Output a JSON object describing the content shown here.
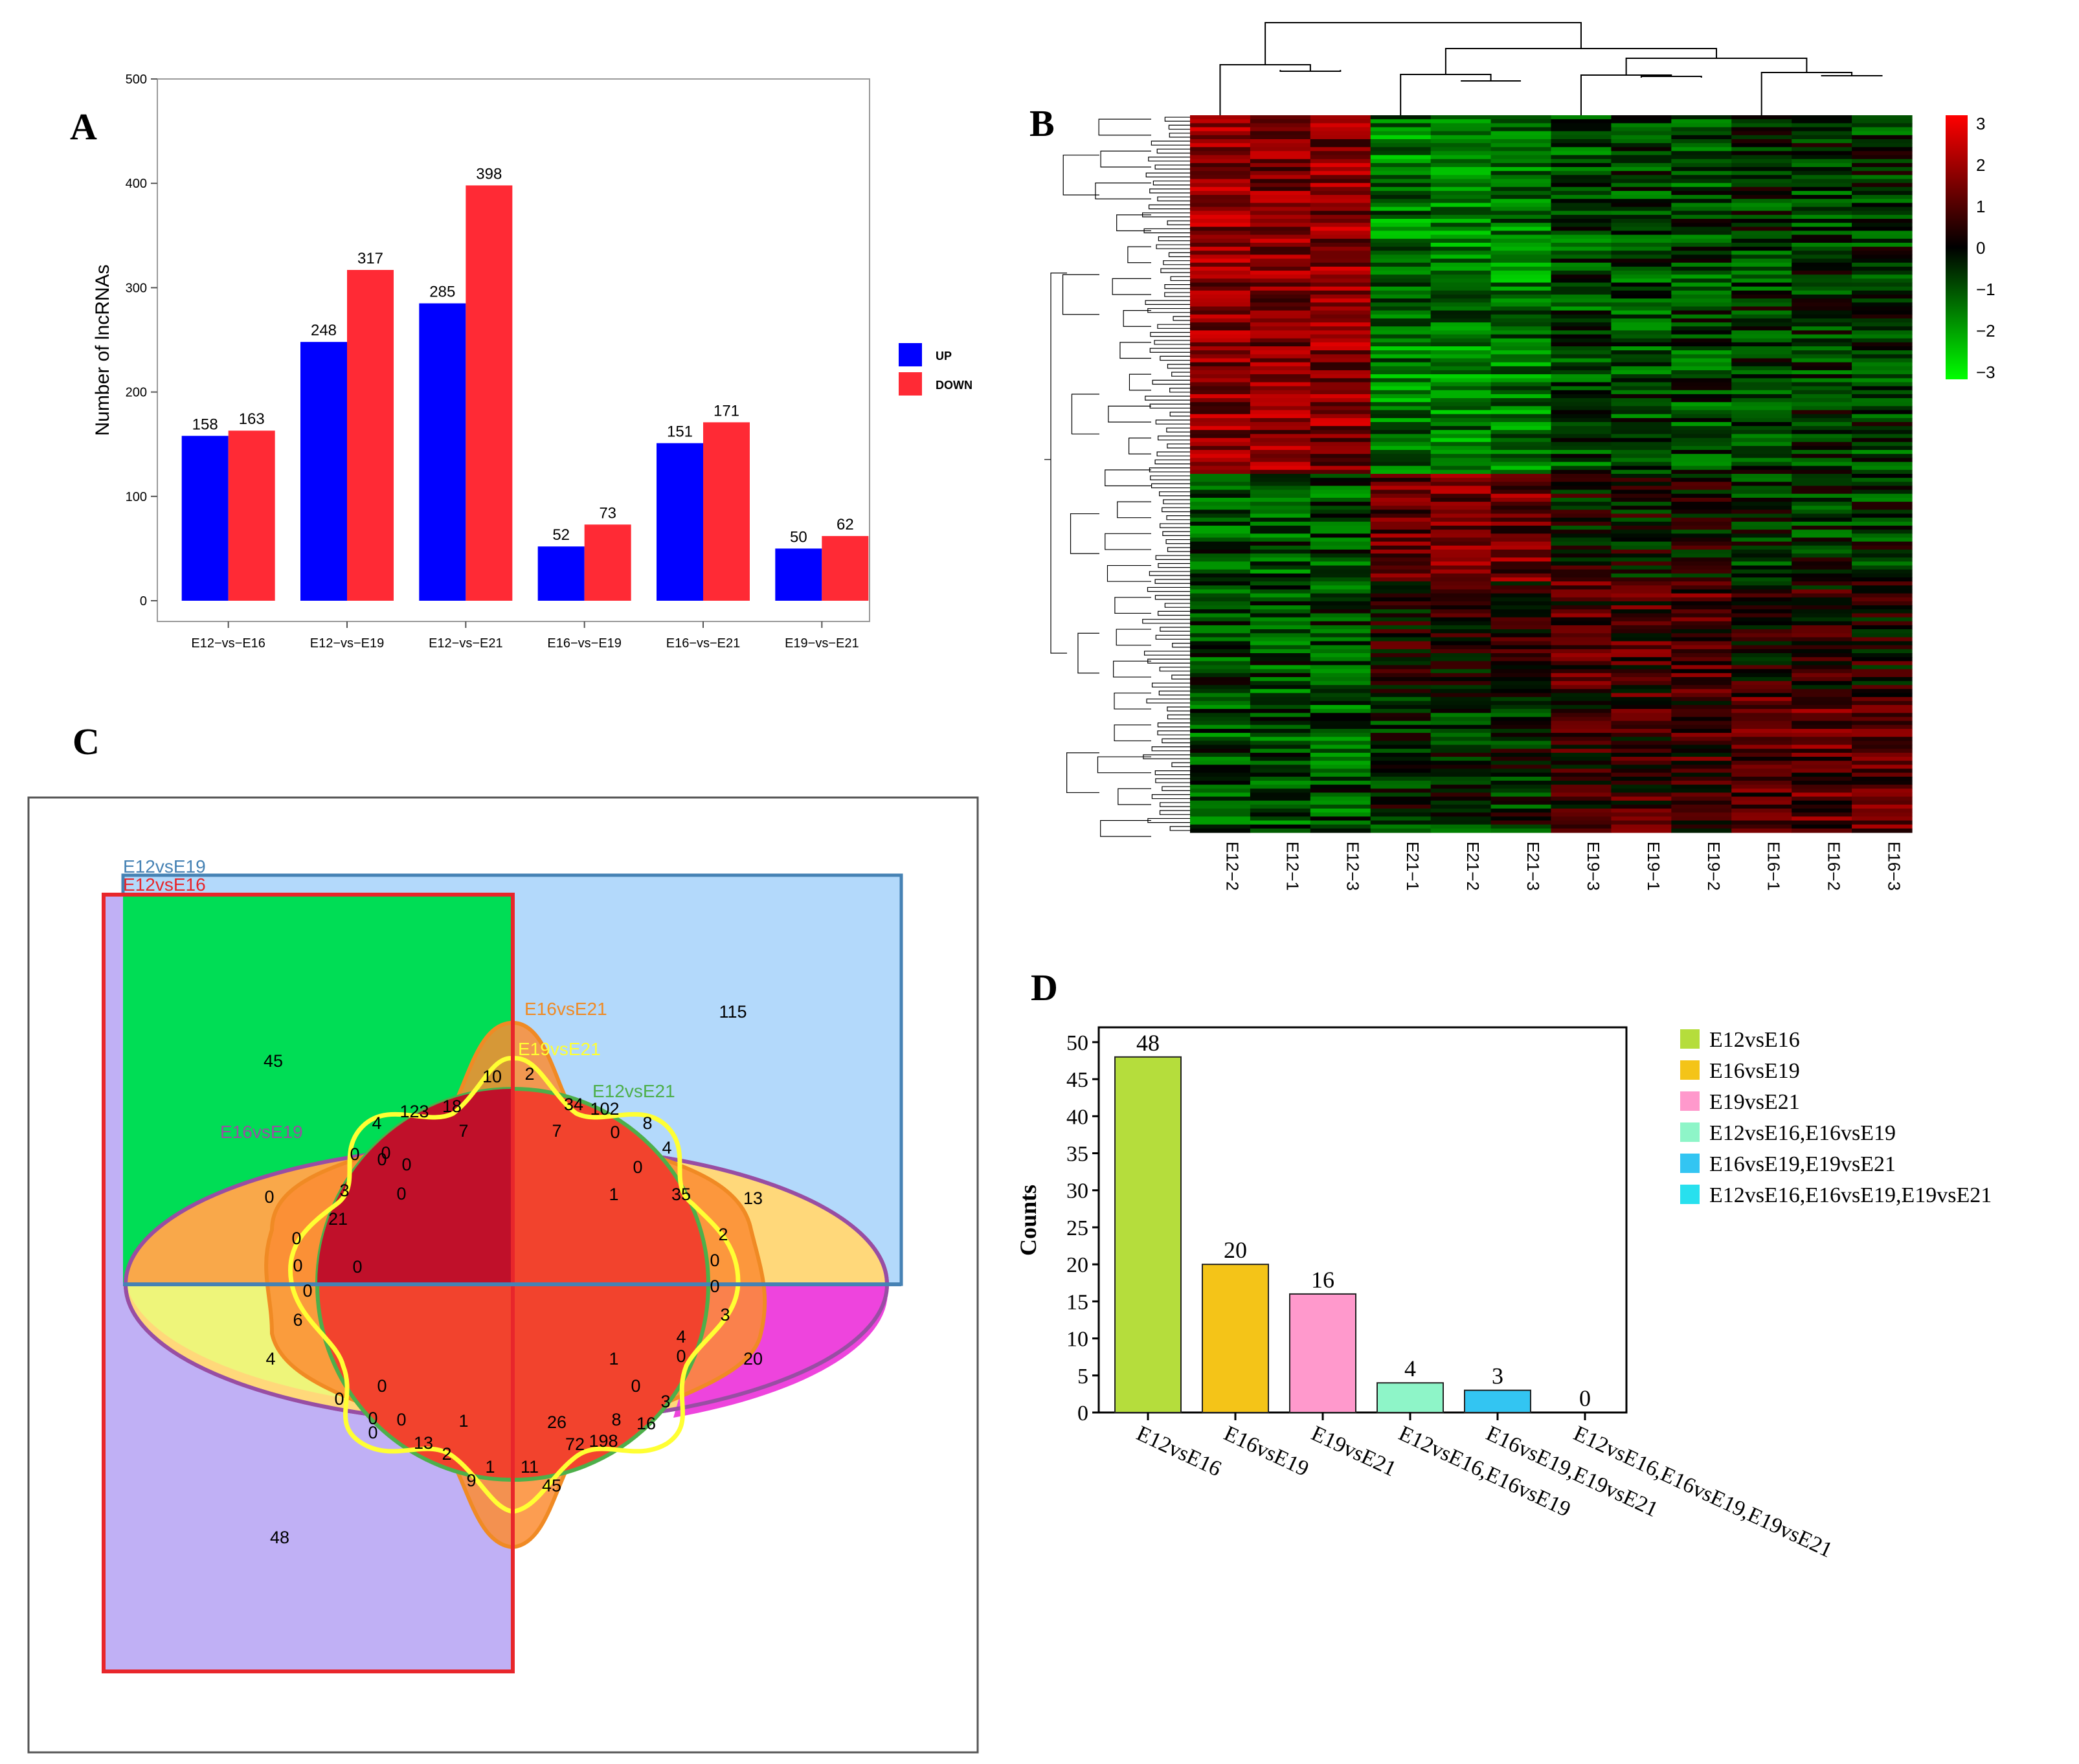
{
  "panels": {
    "a_letter": "A",
    "b_letter": "B",
    "c_letter": "C",
    "d_letter": "D"
  },
  "chart_data": [
    {
      "id": "A",
      "type": "bar",
      "ylabel": "Number of lncRNAs",
      "xlabel": "",
      "ylim": [
        0,
        500
      ],
      "yticks": [
        0,
        100,
        200,
        300,
        400,
        500
      ],
      "categories": [
        "E12−vs−E16",
        "E12−vs−E19",
        "E12−vs−E21",
        "E16−vs−E19",
        "E16−vs−E21",
        "E19−vs−E21"
      ],
      "series": [
        {
          "name": "UP",
          "color": "#0000ff",
          "values": [
            158,
            248,
            285,
            52,
            151,
            50
          ]
        },
        {
          "name": "DOWN",
          "color": "#ff2a35",
          "values": [
            163,
            317,
            398,
            73,
            171,
            62
          ]
        }
      ],
      "legend_position": "right"
    },
    {
      "id": "B",
      "type": "heatmap",
      "columns": [
        "E12−2",
        "E12−1",
        "E12−3",
        "E21−1",
        "E21−2",
        "E21−3",
        "E19−3",
        "E19−1",
        "E19−2",
        "E16−1",
        "E16−2",
        "E16−3"
      ],
      "color_scale": {
        "ticks": [
          3,
          2,
          1,
          0,
          -1,
          -2,
          -3
        ],
        "tick_labels": [
          "3",
          "2",
          "1",
          "0",
          "−1",
          "−2",
          "−3"
        ],
        "colors": [
          "#ff0000",
          "#000000",
          "#00ff00"
        ]
      }
    },
    {
      "id": "C",
      "type": "venn",
      "sets": [
        {
          "name": "E12vsE19",
          "color": "#4682b4"
        },
        {
          "name": "E12vsE16",
          "color": "#e8262b"
        },
        {
          "name": "E16vsE21",
          "color": "#f08a24"
        },
        {
          "name": "E19vsE21",
          "color": "#ffff33"
        },
        {
          "name": "E12vsE21",
          "color": "#4daf4a"
        },
        {
          "name": "E16vsE19",
          "color": "#984ea3"
        }
      ],
      "region_counts": [
        "45",
        "115",
        "13",
        "20",
        "4",
        "48",
        "0",
        "3",
        "21",
        "0",
        "6",
        "0",
        "0",
        "0",
        "4",
        "0",
        "0",
        "123",
        "18",
        "10",
        "2",
        "34",
        "102",
        "0",
        "8",
        "4",
        "0",
        "35",
        "2",
        "0",
        "0",
        "3",
        "4",
        "0",
        "3",
        "16",
        "8",
        "198",
        "72",
        "26",
        "11",
        "45",
        "1",
        "9",
        "2",
        "13",
        "1",
        "0",
        "0",
        "0",
        "0",
        "0",
        "7",
        "7",
        "0",
        "1",
        "0",
        "1",
        "0",
        "0"
      ]
    },
    {
      "id": "D",
      "type": "bar",
      "ylabel": "Counts",
      "ylim": [
        0,
        52
      ],
      "yticks": [
        0,
        5,
        10,
        15,
        20,
        25,
        30,
        35,
        40,
        45,
        50
      ],
      "categories": [
        "E12vsE16",
        "E16vsE19",
        "E19vsE21",
        "E12vsE16,E16vsE19",
        "E16vsE19,E19vsE21",
        "E12vsE16,E16vsE19,E19vsE21"
      ],
      "values": [
        48,
        20,
        16,
        4,
        3,
        0
      ],
      "colors": [
        "#b5dd3c",
        "#f4c418",
        "#ff99cc",
        "#8ef5c8",
        "#33c5f2",
        "#28e0ee"
      ]
    }
  ]
}
